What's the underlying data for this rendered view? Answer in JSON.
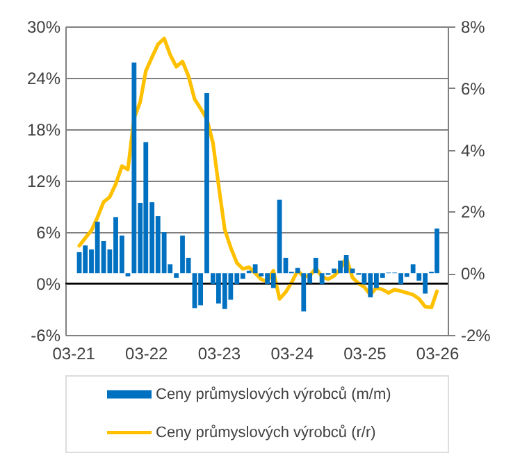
{
  "chart_data": {
    "type": "bar",
    "x": [
      "2021-04",
      "2021-05",
      "2021-06",
      "2021-07",
      "2021-08",
      "2021-09",
      "2021-10",
      "2021-11",
      "2021-12",
      "2022-01",
      "2022-02",
      "2022-03",
      "2022-04",
      "2022-05",
      "2022-06",
      "2022-07",
      "2022-08",
      "2022-09",
      "2022-10",
      "2022-11",
      "2022-12",
      "2023-01",
      "2023-02",
      "2023-03",
      "2023-04",
      "2023-05",
      "2023-06",
      "2023-07",
      "2023-08",
      "2023-09",
      "2023-10",
      "2023-11",
      "2023-12",
      "2024-01",
      "2024-02",
      "2024-03",
      "2024-04",
      "2024-05",
      "2024-06",
      "2024-07",
      "2024-08",
      "2024-09",
      "2024-10",
      "2024-11",
      "2024-12",
      "2025-01",
      "2025-02",
      "2025-03",
      "2025-04",
      "2025-05",
      "2025-06",
      "2025-07",
      "2025-08",
      "2025-09",
      "2025-10",
      "2025-11",
      "2025-12",
      "2026-01",
      "2026-02",
      "2026-03"
    ],
    "series": [
      {
        "name": "Ceny průmyslových výrobců (m/m)",
        "type": "bar",
        "axis": "y2",
        "color": "#0070c0",
        "values": [
          0.68,
          0.9,
          0.77,
          1.67,
          1.04,
          0.77,
          1.82,
          1.22,
          -0.1,
          6.83,
          2.28,
          4.25,
          2.3,
          1.85,
          1.33,
          0.29,
          -0.15,
          1.22,
          0.5,
          -1.13,
          -1.04,
          5.84,
          -0.36,
          -0.98,
          -1.16,
          -0.86,
          -0.36,
          -0.18,
          0.08,
          0.29,
          -0.1,
          -0.36,
          -0.48,
          2.38,
          0.5,
          0.05,
          0.17,
          -1.24,
          -0.33,
          0.5,
          -0.36,
          -0.05,
          0.15,
          0.41,
          0.59,
          0.15,
          -0.05,
          -0.36,
          -0.78,
          -0.48,
          -0.15,
          0.02,
          0.02,
          -0.36,
          -0.12,
          0.29,
          -0.24,
          -0.66,
          0.05,
          1.45
        ]
      },
      {
        "name": "Ceny průmyslových výrobců (r/r)",
        "type": "line",
        "axis": "y",
        "color": "#ffc000",
        "values": [
          4.4,
          5.3,
          6.2,
          7.7,
          9.5,
          10.1,
          11.6,
          13.7,
          13.3,
          19.3,
          21.2,
          24.8,
          26.4,
          27.9,
          28.6,
          26.7,
          25.3,
          25.9,
          24.2,
          21.5,
          20.4,
          19.2,
          16.4,
          11.5,
          6.3,
          4.2,
          2.4,
          1.7,
          1.9,
          1.2,
          0.5,
          0.2,
          1.5,
          -1.8,
          -1.0,
          0.1,
          1.5,
          0.8,
          0.9,
          1.8,
          0.8,
          0.5,
          0.9,
          1.7,
          3.0,
          0.7,
          0,
          -0.4,
          -1.3,
          -0.5,
          -0.7,
          -1.1,
          -0.7,
          -0.9,
          -1.1,
          -1.3,
          -1.8,
          -2.7,
          -2.8,
          -0.9
        ]
      }
    ],
    "xlim": [
      "2021-02-25",
      "2026-03-20"
    ],
    "xticks": [
      {
        "value": "2021-03",
        "label": "03-21"
      },
      {
        "value": "2022-03",
        "label": "03-22"
      },
      {
        "value": "2023-03",
        "label": "03-23"
      },
      {
        "value": "2024-03",
        "label": "03-24"
      },
      {
        "value": "2025-03",
        "label": "03-25"
      },
      {
        "value": "2026-03",
        "label": "03-26"
      }
    ],
    "ylim": [
      -6,
      30
    ],
    "yticks": [
      {
        "value": -6,
        "label": "-6%"
      },
      {
        "value": 0,
        "label": "0%"
      },
      {
        "value": 6,
        "label": "6%"
      },
      {
        "value": 12,
        "label": "12%"
      },
      {
        "value": 18,
        "label": "18%"
      },
      {
        "value": 24,
        "label": "24%"
      },
      {
        "value": 30,
        "label": "30%"
      }
    ],
    "y2lim": [
      -2,
      8
    ],
    "y2ticks": [
      {
        "value": -2,
        "label": "-2%"
      },
      {
        "value": 0,
        "label": "0%"
      },
      {
        "value": 2,
        "label": "2%"
      },
      {
        "value": 4,
        "label": "4%"
      },
      {
        "value": 6,
        "label": "6%"
      },
      {
        "value": 8,
        "label": "8%"
      }
    ],
    "ref_lines": [
      {
        "axis": "y",
        "value": 0,
        "color": "#000000"
      }
    ],
    "grid": "y",
    "legend": "bottom"
  }
}
